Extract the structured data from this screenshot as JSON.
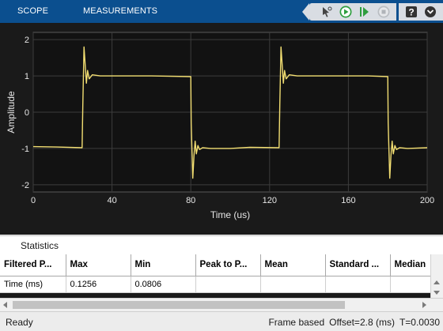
{
  "toolstrip": {
    "tabs": [
      "SCOPE",
      "MEASUREMENTS"
    ],
    "colors": {
      "background": "#0b4f8f",
      "button_group": "#d9dde3",
      "run_green": "#2e9e3e"
    },
    "buttons": [
      "select-cursor-icon",
      "run-icon",
      "step-forward-icon",
      "stop-icon",
      "help-icon",
      "dock-icon"
    ]
  },
  "chart_data": {
    "type": "line",
    "xlabel": "Time (us)",
    "ylabel": "Amplitude",
    "xlim": [
      0,
      200
    ],
    "ylim": [
      -2.2,
      2.2
    ],
    "xticks": [
      0,
      40,
      80,
      120,
      160,
      200
    ],
    "yticks": [
      2,
      1,
      0,
      -1,
      -2
    ],
    "grid": true,
    "background": "#1a1a1a",
    "line_color": "#f2de72",
    "series": [
      {
        "x": [
          0,
          12,
          24.8,
          25.2,
          25.8,
          26.4,
          27.0,
          27.6,
          28.4,
          30,
          34,
          40,
          60,
          80,
          80.2,
          81,
          81.6,
          82.2,
          82.8,
          83.6,
          84.4,
          86,
          90,
          100,
          110,
          124.8,
          125.2,
          125.8,
          126.4,
          127.0,
          127.6,
          128.4,
          130,
          134,
          150,
          170,
          180,
          180.2,
          181,
          181.6,
          182.2,
          182.8,
          183.6,
          184.4,
          186,
          190,
          200
        ],
        "y": [
          -0.95,
          -0.96,
          -0.98,
          0.2,
          1.8,
          1.3,
          0.8,
          1.15,
          0.92,
          1.03,
          1.0,
          1.0,
          1.0,
          0.98,
          -0.3,
          -1.82,
          -1.2,
          -0.8,
          -1.15,
          -0.92,
          -1.03,
          -0.98,
          -1.0,
          -1.0,
          -0.97,
          -0.98,
          0.2,
          1.8,
          1.3,
          0.8,
          1.15,
          0.92,
          1.03,
          1.0,
          1.0,
          1.0,
          0.98,
          -0.3,
          -1.82,
          -1.2,
          -0.8,
          -1.15,
          -0.92,
          -1.03,
          -0.98,
          -1.0,
          -0.98
        ]
      }
    ]
  },
  "statistics": {
    "title": "Statistics",
    "columns": [
      "Filtered P...",
      "Max",
      "Min",
      "Peak to P...",
      "Mean",
      "Standard ...",
      "Median"
    ],
    "rows": [
      [
        "Time (ms)",
        "0.1256",
        "0.0806",
        "",
        "",
        "",
        ""
      ]
    ]
  },
  "status": {
    "left": "Ready",
    "frame": "Frame based",
    "offset": "Offset=2.8 (ms)",
    "time": "T=0.0030"
  }
}
